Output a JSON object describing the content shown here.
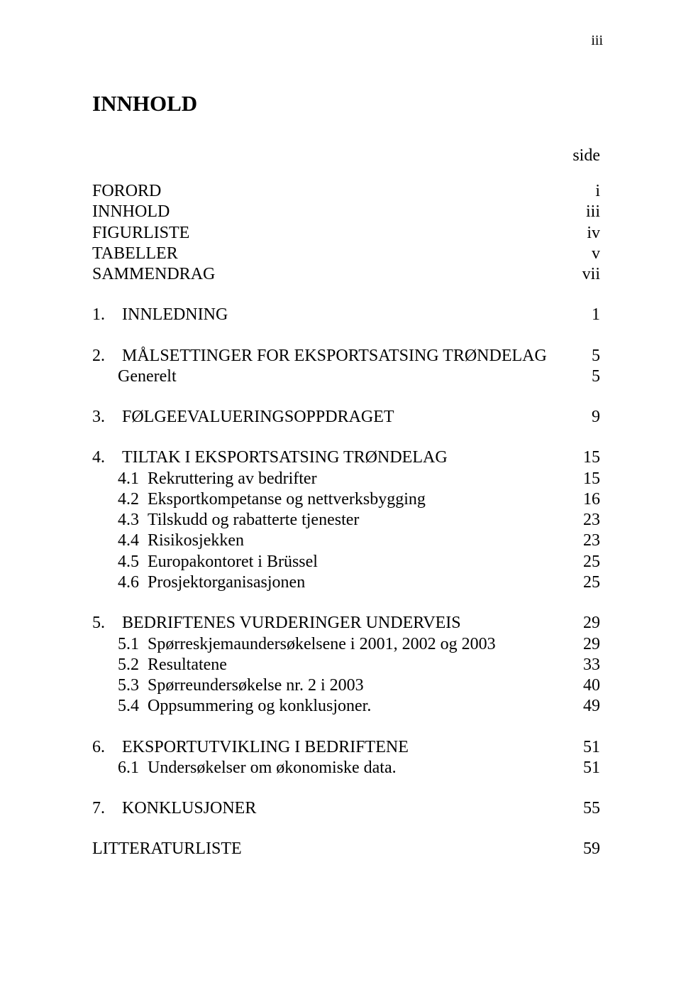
{
  "page_marker_top": "iii",
  "heading": "INNHOLD",
  "side_label": "side",
  "front": [
    {
      "label": "FORORD",
      "page": "i"
    },
    {
      "label": "INNHOLD",
      "page": "iii"
    },
    {
      "label": "FIGURLISTE",
      "page": "iv"
    },
    {
      "label": "TABELLER",
      "page": "v"
    },
    {
      "label": "SAMMENDRAG",
      "page": "vii"
    }
  ],
  "sec1": [
    {
      "label": "1. INNLEDNING",
      "page": "1"
    }
  ],
  "sec2": [
    {
      "label": "2. MÅLSETTINGER FOR EKSPORTSATSING TRØNDELAG",
      "page": "5"
    },
    {
      "label": "  Generelt",
      "page": "5"
    }
  ],
  "sec3": [
    {
      "label": "3. FØLGEEVALUERINGSOPPDRAGET",
      "page": "9"
    }
  ],
  "sec4": [
    {
      "label": "4. TILTAK I EKSPORTSATSING TRØNDELAG",
      "page": "15"
    },
    {
      "label": "  4.1 Rekruttering av bedrifter",
      "page": "15"
    },
    {
      "label": "  4.2 Eksportkompetanse og nettverksbygging",
      "page": "16"
    },
    {
      "label": "  4.3 Tilskudd og rabatterte tjenester",
      "page": "23"
    },
    {
      "label": "  4.4 Risikosjekken",
      "page": "23"
    },
    {
      "label": "  4.5 Europakontoret i Brüssel",
      "page": "25"
    },
    {
      "label": "  4.6 Prosjektorganisasjonen",
      "page": "25"
    }
  ],
  "sec5": [
    {
      "label": "5. BEDRIFTENES VURDERINGER UNDERVEIS",
      "page": "29"
    },
    {
      "label": "  5.1 Spørreskjemaundersøkelsene i 2001, 2002 og 2003",
      "page": "29"
    },
    {
      "label": "  5.2 Resultatene",
      "page": "33"
    },
    {
      "label": "  5.3 Spørreundersøkelse nr. 2 i 2003",
      "page": "40"
    },
    {
      "label": "  5.4 Oppsummering og konklusjoner.",
      "page": "49"
    }
  ],
  "sec6": [
    {
      "label": "6. EKSPORTUTVIKLING I BEDRIFTENE",
      "page": "51"
    },
    {
      "label": "  6.1 Undersøkelser om økonomiske data.",
      "page": "51"
    }
  ],
  "sec7": [
    {
      "label": "7. KONKLUSJONER",
      "page": "55"
    }
  ],
  "back": [
    {
      "label": "LITTERATURLISTE",
      "page": "59"
    }
  ]
}
